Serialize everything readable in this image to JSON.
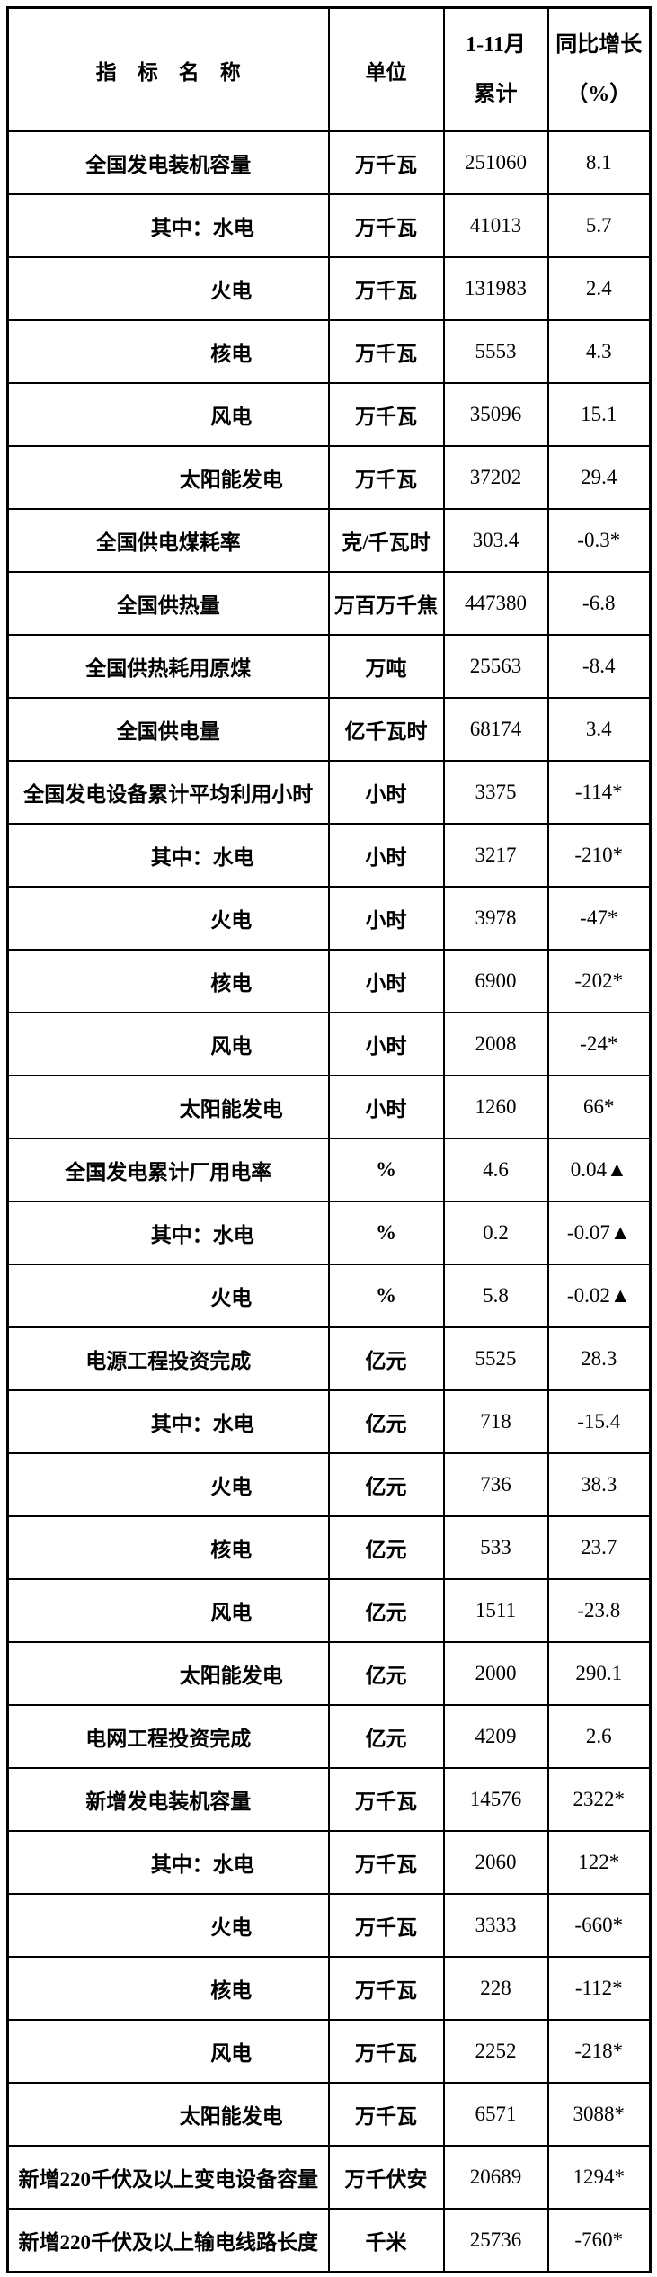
{
  "page": {
    "background": "#ffffff",
    "text_color": "#000000",
    "border_color": "#000000"
  },
  "table": {
    "header": {
      "indicator": "指　标　名　称",
      "unit": "单位",
      "period_line1": "1-11月",
      "period_line2": "累计",
      "yoy_line1": "同比增长",
      "yoy_line2": "（%）"
    },
    "rows": [
      {
        "name": "全国发电装机容量",
        "unit": "万千瓦",
        "value": "251060",
        "yoy": "8.1",
        "level": 0
      },
      {
        "name": "其中：水电",
        "unit": "万千瓦",
        "value": "41013",
        "yoy": "5.7",
        "level": 1
      },
      {
        "name": "火电",
        "unit": "万千瓦",
        "value": "131983",
        "yoy": "2.4",
        "level": 2
      },
      {
        "name": "核电",
        "unit": "万千瓦",
        "value": "5553",
        "yoy": "4.3",
        "level": 2
      },
      {
        "name": "风电",
        "unit": "万千瓦",
        "value": "35096",
        "yoy": "15.1",
        "level": 2
      },
      {
        "name": "太阳能发电",
        "unit": "万千瓦",
        "value": "37202",
        "yoy": "29.4",
        "level": 2
      },
      {
        "name": "全国供电煤耗率",
        "unit": "克/千瓦时",
        "value": "303.4",
        "yoy": "-0.3*",
        "level": 0
      },
      {
        "name": "全国供热量",
        "unit": "万百万千焦",
        "value": "447380",
        "yoy": "-6.8",
        "level": 0
      },
      {
        "name": "全国供热耗用原煤",
        "unit": "万吨",
        "value": "25563",
        "yoy": "-8.4",
        "level": 0
      },
      {
        "name": "全国供电量",
        "unit": "亿千瓦时",
        "value": "68174",
        "yoy": "3.4",
        "level": 0
      },
      {
        "name": "全国发电设备累计平均利用小时",
        "unit": "小时",
        "value": "3375",
        "yoy": "-114*",
        "level": 0
      },
      {
        "name": "其中：水电",
        "unit": "小时",
        "value": "3217",
        "yoy": "-210*",
        "level": 1
      },
      {
        "name": "火电",
        "unit": "小时",
        "value": "3978",
        "yoy": "-47*",
        "level": 2
      },
      {
        "name": "核电",
        "unit": "小时",
        "value": "6900",
        "yoy": "-202*",
        "level": 2
      },
      {
        "name": "风电",
        "unit": "小时",
        "value": "2008",
        "yoy": "-24*",
        "level": 2
      },
      {
        "name": "太阳能发电",
        "unit": "小时",
        "value": "1260",
        "yoy": "66*",
        "level": 2
      },
      {
        "name": "全国发电累计厂用电率",
        "unit": "%",
        "value": "4.6",
        "yoy": "0.04▲",
        "level": 0
      },
      {
        "name": "其中：水电",
        "unit": "%",
        "value": "0.2",
        "yoy": "-0.07▲",
        "level": 1
      },
      {
        "name": "火电",
        "unit": "%",
        "value": "5.8",
        "yoy": "-0.02▲",
        "level": 2
      },
      {
        "name": "电源工程投资完成",
        "unit": "亿元",
        "value": "5525",
        "yoy": "28.3",
        "level": 0
      },
      {
        "name": "其中：水电",
        "unit": "亿元",
        "value": "718",
        "yoy": "-15.4",
        "level": 1
      },
      {
        "name": "火电",
        "unit": "亿元",
        "value": "736",
        "yoy": "38.3",
        "level": 2
      },
      {
        "name": "核电",
        "unit": "亿元",
        "value": "533",
        "yoy": "23.7",
        "level": 2
      },
      {
        "name": "风电",
        "unit": "亿元",
        "value": "1511",
        "yoy": "-23.8",
        "level": 2
      },
      {
        "name": "太阳能发电",
        "unit": "亿元",
        "value": "2000",
        "yoy": "290.1",
        "level": 2
      },
      {
        "name": "电网工程投资完成",
        "unit": "亿元",
        "value": "4209",
        "yoy": "2.6",
        "level": 0
      },
      {
        "name": "新增发电装机容量",
        "unit": "万千瓦",
        "value": "14576",
        "yoy": "2322*",
        "level": 0
      },
      {
        "name": "其中：水电",
        "unit": "万千瓦",
        "value": "2060",
        "yoy": "122*",
        "level": 1
      },
      {
        "name": "火电",
        "unit": "万千瓦",
        "value": "3333",
        "yoy": "-660*",
        "level": 2
      },
      {
        "name": "核电",
        "unit": "万千瓦",
        "value": "228",
        "yoy": "-112*",
        "level": 2
      },
      {
        "name": "风电",
        "unit": "万千瓦",
        "value": "2252",
        "yoy": "-218*",
        "level": 2
      },
      {
        "name": "太阳能发电",
        "unit": "万千瓦",
        "value": "6571",
        "yoy": "3088*",
        "level": 2
      },
      {
        "name": "新增220千伏及以上变电设备容量",
        "unit": "万千伏安",
        "value": "20689",
        "yoy": "1294*",
        "level": 0
      },
      {
        "name": "新增220千伏及以上输电线路长度",
        "unit": "千米",
        "value": "25736",
        "yoy": "-760*",
        "level": 0
      }
    ]
  }
}
